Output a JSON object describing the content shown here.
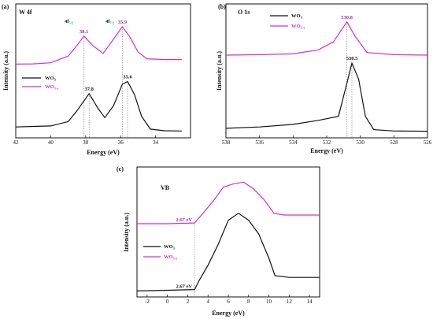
{
  "colors": {
    "wo3": "#111111",
    "wo3x": "#cc33cc",
    "accent_text": "#9a2fbf"
  },
  "chart_data": [
    {
      "id": "a",
      "type": "line",
      "panel_label": "(a)",
      "title": "W 4f",
      "xlabel": "Energy (eV)",
      "ylabel": "Intensity (a.u.)",
      "xlim": [
        42,
        32
      ],
      "x_reversed": true,
      "xticks": [
        42,
        40,
        38,
        36,
        34
      ],
      "legend_placement": "left-middle",
      "series": [
        {
          "name": "WO3",
          "name_main": "WO",
          "name_sub": "3",
          "color": "#111111",
          "points": [
            [
              42,
              0.2
            ],
            [
              41,
              0.22
            ],
            [
              40,
              0.24
            ],
            [
              39,
              0.4
            ],
            [
              38.5,
              0.8
            ],
            [
              37.8,
              1.45
            ],
            [
              37.3,
              0.9
            ],
            [
              36.9,
              0.55
            ],
            [
              36.4,
              1.0
            ],
            [
              35.9,
              1.8
            ],
            [
              35.6,
              1.9
            ],
            [
              35.2,
              1.4
            ],
            [
              34.8,
              0.6
            ],
            [
              34.3,
              0.12
            ],
            [
              33.5,
              0.06
            ],
            [
              32.5,
              0.05
            ]
          ]
        },
        {
          "name": "WO3-x",
          "name_main": "WO",
          "name_sub": "3-x",
          "color": "#cc33cc",
          "points": [
            [
              42,
              2.55
            ],
            [
              41,
              2.56
            ],
            [
              40,
              2.6
            ],
            [
              39,
              2.85
            ],
            [
              38.5,
              3.25
            ],
            [
              38.1,
              3.6
            ],
            [
              37.6,
              3.25
            ],
            [
              37.0,
              2.95
            ],
            [
              36.5,
              3.4
            ],
            [
              35.9,
              3.95
            ],
            [
              35.5,
              3.6
            ],
            [
              35.0,
              3.0
            ],
            [
              34.5,
              2.75
            ],
            [
              33.5,
              2.72
            ],
            [
              32.5,
              2.72
            ]
          ]
        }
      ],
      "annotations": [
        {
          "text": "37.8",
          "x": 37.8,
          "y": 1.45,
          "color": "#111111",
          "note": "peak"
        },
        {
          "text": "35.6",
          "x": 35.6,
          "y": 1.9,
          "color": "#111111",
          "note": "peak"
        },
        {
          "text": "38.1",
          "x": 38.1,
          "y": 3.6,
          "color": "#9a2fbf",
          "note": "peak"
        },
        {
          "text": "35.9",
          "x": 35.9,
          "y": 3.95,
          "color": "#9a2fbf",
          "note": "peak"
        }
      ],
      "peak_labels": [
        {
          "main": "4f",
          "sub": "5/2"
        },
        {
          "main": "4f",
          "sub": "7/2"
        }
      ]
    },
    {
      "id": "b",
      "type": "line",
      "panel_label": "(b)",
      "title": "O 1s",
      "xlabel": "Energy (eV)",
      "ylabel": "Intensity (a.u.)",
      "xlim": [
        538,
        526
      ],
      "x_reversed": true,
      "xticks": [
        538,
        536,
        534,
        532,
        530,
        528,
        526
      ],
      "legend_placement": "top-middle",
      "series": [
        {
          "name": "WO3",
          "name_main": "WO",
          "name_sub": "3",
          "color": "#111111",
          "points": [
            [
              538,
              0.15
            ],
            [
              536,
              0.2
            ],
            [
              534,
              0.3
            ],
            [
              532.5,
              0.45
            ],
            [
              531.3,
              0.6
            ],
            [
              530.9,
              1.6
            ],
            [
              530.5,
              2.6
            ],
            [
              530.1,
              2.0
            ],
            [
              529.7,
              0.6
            ],
            [
              529.2,
              0.1
            ],
            [
              528,
              0.05
            ],
            [
              526,
              0.04
            ]
          ]
        },
        {
          "name": "WO3-x",
          "name_main": "WO",
          "name_sub": "3-x",
          "color": "#cc33cc",
          "points": [
            [
              538,
              2.9
            ],
            [
              536,
              2.92
            ],
            [
              534,
              2.95
            ],
            [
              532.5,
              3.1
            ],
            [
              531.6,
              3.4
            ],
            [
              530.8,
              4.15
            ],
            [
              530.3,
              3.6
            ],
            [
              529.6,
              3.0
            ],
            [
              528,
              2.92
            ],
            [
              526,
              2.9
            ]
          ]
        }
      ],
      "annotations": [
        {
          "text": "530.8",
          "x": 530.8,
          "y": 4.15,
          "color": "#9a2fbf"
        },
        {
          "text": "530.5",
          "x": 530.5,
          "y": 2.6,
          "color": "#111111"
        }
      ]
    },
    {
      "id": "c",
      "type": "line",
      "panel_label": "(c)",
      "title": "VB",
      "xlabel": "Energy (eV)",
      "ylabel": "Intensity (a.u.)",
      "xlim": [
        -3,
        15
      ],
      "x_reversed": false,
      "xticks": [
        -2,
        0,
        2,
        4,
        6,
        8,
        10,
        12,
        14
      ],
      "legend_placement": "bottom-left",
      "series": [
        {
          "name": "WO3",
          "name_main": "WO",
          "name_sub": "3",
          "color": "#111111",
          "points": [
            [
              -3,
              0.06
            ],
            [
              0,
              0.08
            ],
            [
              2.67,
              0.1
            ],
            [
              3.2,
              0.4
            ],
            [
              4,
              0.8
            ],
            [
              5,
              1.4
            ],
            [
              6,
              2.1
            ],
            [
              7,
              2.3
            ],
            [
              8,
              2.1
            ],
            [
              9,
              1.7
            ],
            [
              10,
              1.0
            ],
            [
              10.6,
              0.5
            ],
            [
              12,
              0.45
            ],
            [
              15,
              0.45
            ]
          ]
        },
        {
          "name": "WO3-x",
          "name_main": "WO",
          "name_sub": "3-x",
          "color": "#cc33cc",
          "points": [
            [
              -3,
              2.0
            ],
            [
              0,
              2.0
            ],
            [
              2.67,
              2.02
            ],
            [
              3.5,
              2.3
            ],
            [
              4.5,
              2.65
            ],
            [
              5.5,
              3.05
            ],
            [
              6.5,
              3.15
            ],
            [
              7.5,
              3.2
            ],
            [
              8.5,
              3.0
            ],
            [
              9.5,
              2.7
            ],
            [
              10.5,
              2.3
            ],
            [
              11.5,
              2.25
            ],
            [
              15,
              2.25
            ]
          ]
        }
      ],
      "annotations": [
        {
          "text": "2.67 eV",
          "x": 2.67,
          "y": 2.02,
          "color": "#9a2fbf"
        },
        {
          "text": "2.67 eV",
          "x": 2.67,
          "y": 0.1,
          "color": "#111111"
        }
      ]
    }
  ]
}
